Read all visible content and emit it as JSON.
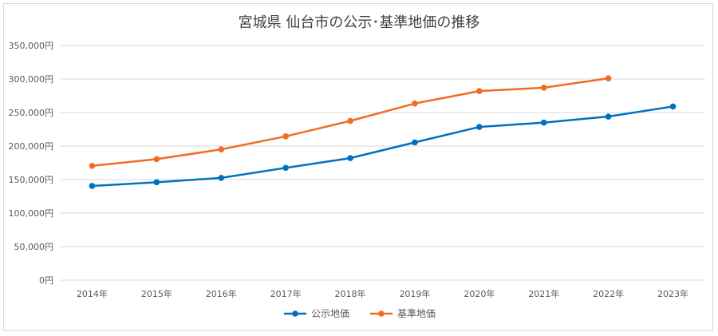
{
  "chart_data": {
    "type": "line",
    "title": "宮城県 仙台市の公示･基準地価の推移",
    "xlabel": "",
    "ylabel": "",
    "categories": [
      "2014年",
      "2015年",
      "2016年",
      "2017年",
      "2018年",
      "2019年",
      "2020年",
      "2021年",
      "2022年",
      "2023年"
    ],
    "ylim": [
      0,
      350000
    ],
    "y_ticks": [
      0,
      50000,
      100000,
      150000,
      200000,
      250000,
      300000,
      350000
    ],
    "y_tick_labels": [
      "0円",
      "50,000円",
      "100,000円",
      "150,000円",
      "200,000円",
      "250,000円",
      "300,000円",
      "350,000円"
    ],
    "grid": true,
    "legend_position": "bottom",
    "series": [
      {
        "name": "公示地価",
        "color": "#0070c0",
        "values": [
          140500,
          146000,
          152500,
          167500,
          182000,
          205500,
          228500,
          235000,
          244000,
          259000
        ]
      },
      {
        "name": "基準地価",
        "color": "#f26b21",
        "values": [
          170500,
          180500,
          195000,
          214500,
          237500,
          263500,
          282000,
          287000,
          301000,
          null
        ]
      }
    ]
  }
}
